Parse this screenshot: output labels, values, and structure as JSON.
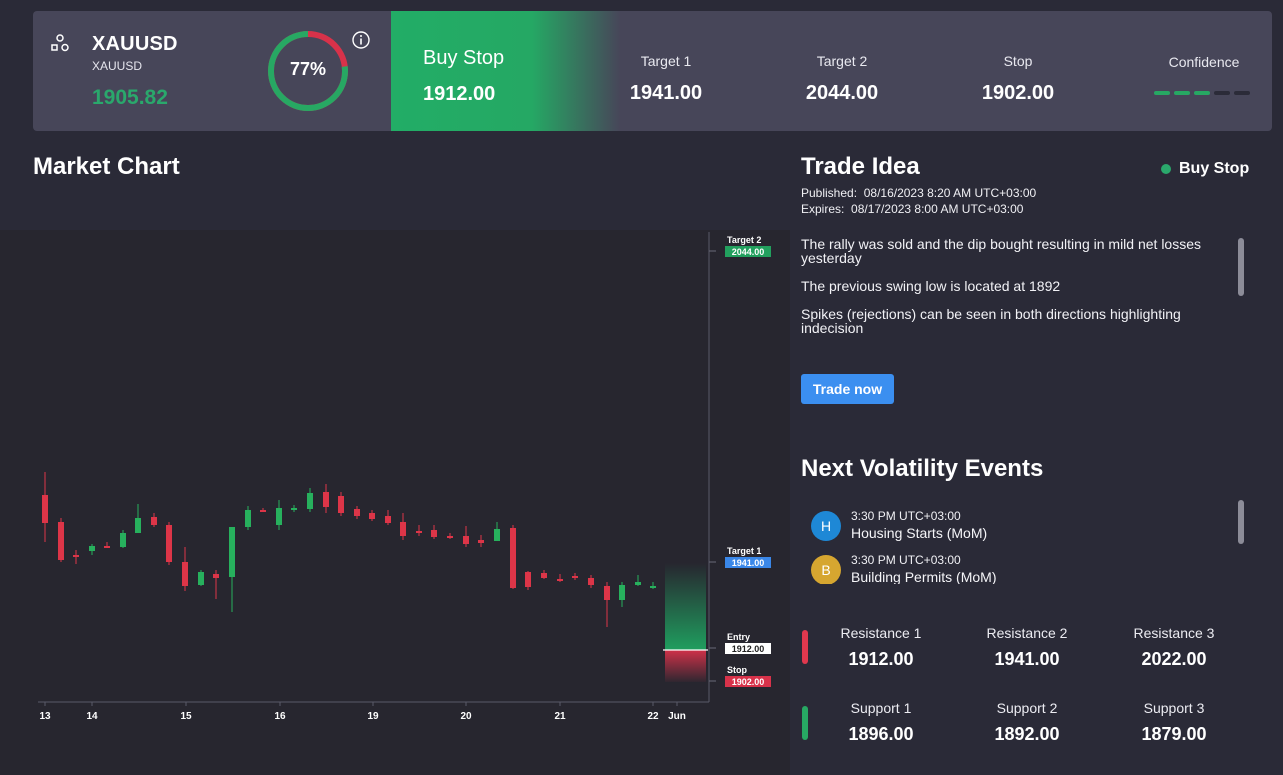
{
  "header": {
    "symbol": "XAUUSD",
    "symbol_sub": "XAUUSD",
    "price": "1905.82",
    "confidence_percent": 77,
    "confidence_label": "77%",
    "signal_type": "Buy Stop",
    "signal_price": "1912.00",
    "columns": [
      {
        "label": "Target 1",
        "value": "1941.00"
      },
      {
        "label": "Target 2",
        "value": "2044.00"
      },
      {
        "label": "Stop",
        "value": "1902.00"
      }
    ],
    "confidence_title": "Confidence",
    "confidence_level": 3,
    "confidence_max": 5
  },
  "market_chart": {
    "title": "Market Chart",
    "chart_data": {
      "type": "candlestick",
      "x_ticks": [
        "13",
        "14",
        "15",
        "16",
        "19",
        "20",
        "21",
        "22",
        "Jun"
      ],
      "levels": [
        {
          "label": "Target 2",
          "value": "2044.00",
          "color": "#22a05e"
        },
        {
          "label": "Target 1",
          "value": "1941.00",
          "color": "#3a87e8"
        },
        {
          "label": "Entry",
          "value": "1912.00",
          "color": "#ffffff"
        },
        {
          "label": "Stop",
          "value": "1902.00",
          "color": "#d8324a"
        }
      ],
      "colors": {
        "up": "#27b05d",
        "down": "#dd3548"
      }
    }
  },
  "trade_idea": {
    "title": "Trade Idea",
    "status": "Buy Stop",
    "published_label": "Published:",
    "published": "08/16/2023 8:20 AM UTC+03:00",
    "expires_label": "Expires:",
    "expires": "08/17/2023 8:00 AM UTC+03:00",
    "paragraphs": [
      "The rally was sold and the dip bought resulting in mild net losses yesterday",
      "The previous swing low is located at 1892",
      "Spikes (rejections) can be seen in both directions highlighting indecision"
    ],
    "button": "Trade now"
  },
  "volatility": {
    "title": "Next Volatility Events",
    "events": [
      {
        "badge": "H",
        "badge_color": "#1e88d6",
        "time": "3:30 PM UTC+03:00",
        "name": "Housing Starts (MoM)"
      },
      {
        "badge": "B",
        "badge_color": "#d6a630",
        "time": "3:30 PM UTC+03:00",
        "name": "Building Permits (MoM)"
      }
    ]
  },
  "levels": {
    "resistance": [
      {
        "label": "Resistance 1",
        "value": "1912.00"
      },
      {
        "label": "Resistance 2",
        "value": "1941.00"
      },
      {
        "label": "Resistance 3",
        "value": "2022.00"
      }
    ],
    "support": [
      {
        "label": "Support 1",
        "value": "1896.00"
      },
      {
        "label": "Support 2",
        "value": "1892.00"
      },
      {
        "label": "Support 3",
        "value": "1879.00"
      }
    ],
    "resistance_color": "#e0384e",
    "support_color": "#27a863"
  }
}
